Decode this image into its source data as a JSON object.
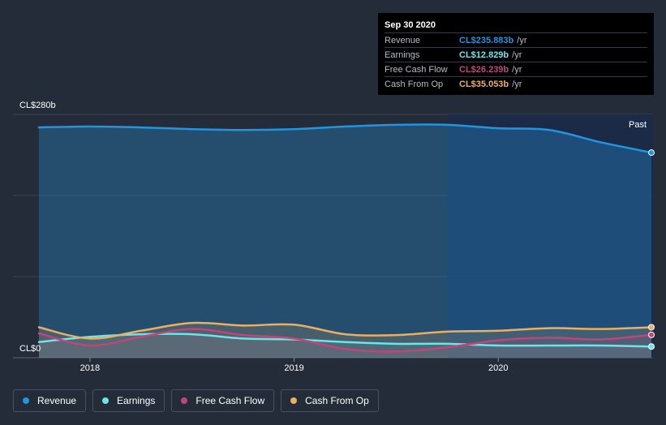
{
  "chart_data": {
    "type": "area",
    "title": "",
    "y_axis": {
      "top_label": "CL$280b",
      "bottom_label": "CL$0",
      "ylim": [
        0,
        280
      ],
      "unit": "CL$ billions"
    },
    "x_axis": {
      "ticks": [
        "2018",
        "2019",
        "2020"
      ],
      "tick_values": [
        2018.0,
        2019.0,
        2020.0
      ],
      "xlim": [
        2017.75,
        2020.75
      ]
    },
    "past_label": "Past",
    "past_start": 2019.75,
    "series": [
      {
        "name": "Revenue",
        "color": "#2394df",
        "x": [
          2017.75,
          2018.0,
          2018.25,
          2018.5,
          2018.75,
          2019.0,
          2019.25,
          2019.5,
          2019.75,
          2020.0,
          2020.25,
          2020.5,
          2020.75
        ],
        "values": [
          265,
          266,
          265,
          263,
          262,
          263,
          266,
          268,
          268,
          264,
          262,
          248,
          236
        ]
      },
      {
        "name": "Earnings",
        "color": "#6ce5e8",
        "x": [
          2017.75,
          2018.0,
          2018.25,
          2018.5,
          2018.75,
          2019.0,
          2019.25,
          2019.5,
          2019.75,
          2020.0,
          2020.25,
          2020.5,
          2020.75
        ],
        "values": [
          18,
          24,
          27,
          27,
          22,
          21,
          18,
          16,
          16,
          14,
          14,
          14,
          12.829
        ]
      },
      {
        "name": "Free Cash Flow",
        "color": "#c0457b",
        "x": [
          2017.75,
          2018.0,
          2018.25,
          2018.5,
          2018.75,
          2019.0,
          2019.25,
          2019.5,
          2019.75,
          2020.0,
          2020.25,
          2020.5,
          2020.75
        ],
        "values": [
          28,
          14,
          24,
          33,
          26,
          22,
          10,
          7,
          12,
          20,
          23,
          21,
          26.239
        ]
      },
      {
        "name": "Cash From Op",
        "color": "#e9b064",
        "x": [
          2017.75,
          2018.0,
          2018.25,
          2018.5,
          2018.75,
          2019.0,
          2019.25,
          2019.5,
          2019.75,
          2020.0,
          2020.25,
          2020.5,
          2020.75
        ],
        "values": [
          35,
          22,
          31,
          40,
          37,
          38,
          27,
          26,
          30,
          31,
          34,
          33,
          35.053
        ]
      }
    ]
  },
  "tooltip": {
    "date": "Sep 30 2020",
    "rows": [
      {
        "name": "Revenue",
        "value": "CL$235.883b",
        "unit": "/yr",
        "color": "#2394df"
      },
      {
        "name": "Earnings",
        "value": "CL$12.829b",
        "unit": "/yr",
        "color": "#6ce5e8"
      },
      {
        "name": "Free Cash Flow",
        "value": "CL$26.239b",
        "unit": "/yr",
        "color": "#c0457b"
      },
      {
        "name": "Cash From Op",
        "value": "CL$35.053b",
        "unit": "/yr",
        "color": "#e9b064"
      }
    ]
  },
  "legend": {
    "items": [
      {
        "label": "Revenue",
        "color": "#2394df"
      },
      {
        "label": "Earnings",
        "color": "#6ce5e8"
      },
      {
        "label": "Free Cash Flow",
        "color": "#c0457b"
      },
      {
        "label": "Cash From Op",
        "color": "#e9b064"
      }
    ]
  }
}
